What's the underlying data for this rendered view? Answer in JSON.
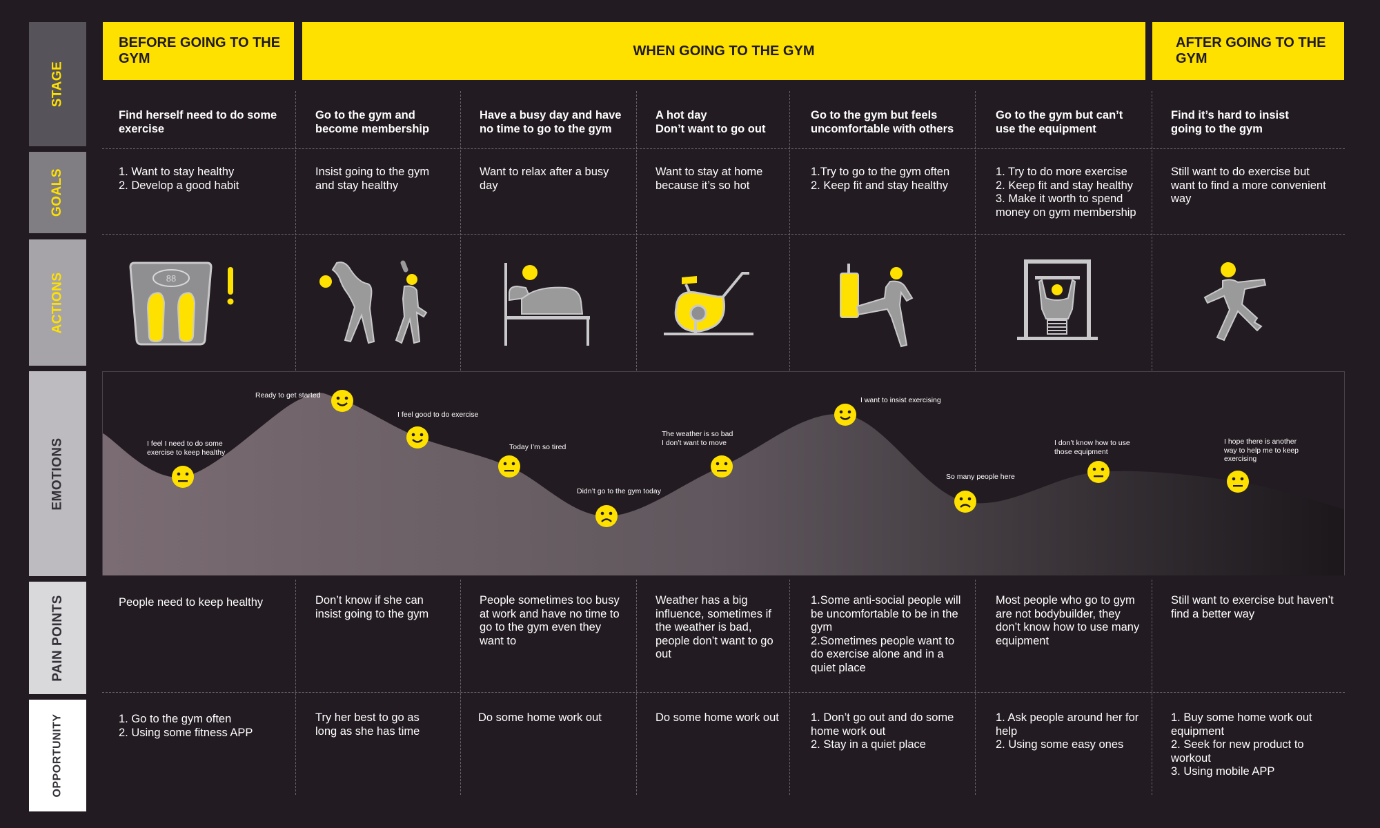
{
  "rows": {
    "stage": "STAGE",
    "goals": "GOALS",
    "actions": "ACTIONS",
    "emotions": "EMOTIONS",
    "pain_points": "PAIN POINTS",
    "opportunity": "OPPORTUNITY"
  },
  "stages": [
    "BEFORE GOING TO THE\nGYM",
    "WHEN GOING TO THE GYM",
    "AFTER GOING TO THE\nGYM"
  ],
  "columns": [
    {
      "title": "Find herself need to do some\nexercise",
      "goal": "1. Want to stay healthy\n2. Develop a good habit",
      "action_icon": "scale-icon",
      "emotion": "I feel I need to do some\nexercise to keep healthy",
      "pain": "People need to keep healthy",
      "opportunity": "1. Go to the gym often\n2. Using some fitness APP"
    },
    {
      "title": "Go to the gym and\nbecome membership",
      "goal": "Insist going to the gym\nand stay healthy",
      "action_icon": "stretching-people-icon",
      "emotion": "Ready to get started",
      "emotion_2": "I feel good to do exercise",
      "pain": "Don’t know if she can\ninsist going to the gym",
      "opportunity": "Try her best to go as\nlong as she has time"
    },
    {
      "title": "Have a busy day and have\nno time to go to the gym",
      "goal": "Want to relax after a busy\nday",
      "action_icon": "bed-icon",
      "emotion": "Today I’m so tired",
      "emotion_2": "Didn’t go to the gym today",
      "pain": "People sometimes too busy\nat work and have no time to\ngo to the gym even they\nwant to",
      "opportunity": "Do some home work out"
    },
    {
      "title": "A hot day\nDon’t want to go out",
      "goal": "Want to stay at home\nbecause it’s so hot",
      "action_icon": "exercise-bike-icon",
      "emotion": "The weather is so bad\nI don’t want to move",
      "pain": "Weather has a big\ninfluence, sometimes if\nthe weather is bad,\npeople don’t want to go\nout",
      "opportunity": "Do some home work out"
    },
    {
      "title": "Go to the gym but feels\nuncomfortable with others",
      "goal": "1.Try to go to the gym often\n2. Keep fit and stay healthy",
      "action_icon": "kickboxing-icon",
      "emotion": "I want to insist exercising",
      "emotion_2": "So many people here",
      "pain": "1.Some anti-social people will\nbe uncomfortable to be in the\ngym\n2.Sometimes people want to\ndo exercise alone and in a\nquiet place",
      "opportunity": "1. Don’t go out and do some\nhome work out\n2. Stay in a quiet place"
    },
    {
      "title": "Go to the gym but can’t\nuse the equipment",
      "goal": "1. Try to do more exercise\n2. Keep fit and stay healthy\n3. Make it worth to spend\nmoney on gym membership",
      "action_icon": "weight-machine-icon",
      "emotion": "I don’t know how to use\nthose equipment",
      "pain": "Most people who go to gym\nare not bodybuilder, they\ndon’t know how to use many\nequipment",
      "opportunity": "1. Ask people around her for\nhelp\n2. Using some easy ones"
    },
    {
      "title": "Find it’s hard to insist\ngoing to the gym",
      "goal": "Still want to do exercise but\nwant to find a more convenient\nway",
      "action_icon": "running-person-icon",
      "emotion": "I hope there is another\nway to help me to keep\nexercising",
      "pain": "Still want to exercise but haven’t\nfind a better way",
      "opportunity": "1. Buy some home work out\nequipment\n2. Seek for new product to\nworkout\n3. Using mobile APP"
    }
  ],
  "emotion_points": [
    {
      "mood": "neutral"
    },
    {
      "mood": "happy"
    },
    {
      "mood": "happy"
    },
    {
      "mood": "neutral"
    },
    {
      "mood": "sad"
    },
    {
      "mood": "neutral"
    },
    {
      "mood": "happy"
    },
    {
      "mood": "sad"
    },
    {
      "mood": "neutral"
    },
    {
      "mood": "neutral"
    }
  ],
  "colors": {
    "background": "#221b21",
    "accent": "#ffe100",
    "icon_gray": "#9a9a9a"
  }
}
